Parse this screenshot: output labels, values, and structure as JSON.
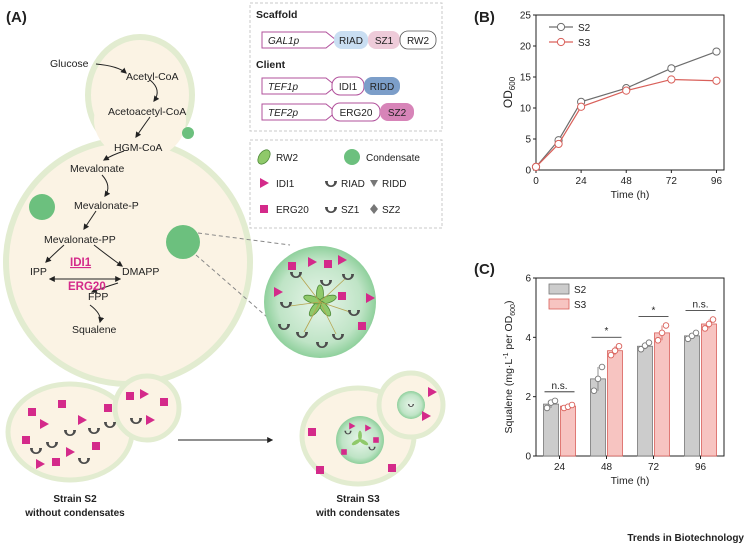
{
  "panel_labels": {
    "a": "(A)",
    "b": "(B)",
    "c": "(C)"
  },
  "pathway": {
    "steps": [
      "Glucose",
      "Acetyl-CoA",
      "Acetoacetyl-CoA",
      "HGM-CoA",
      "Mevalonate",
      "Mevalonate-P",
      "Mevalonate-PP",
      "IPP",
      "DMAPP",
      "FPP",
      "Squalene"
    ],
    "enzymes": {
      "idi1": "IDI1",
      "erg20": "ERG20"
    }
  },
  "strains": {
    "s2_name": "Strain S2",
    "s2_desc": "without condensates",
    "s3_name": "Strain S3",
    "s3_desc": "with condensates"
  },
  "constructs": {
    "scaffold_title": "Scaffold",
    "client_title": "Client",
    "scaffold": {
      "promoter": "GAL1p",
      "domains": [
        "RIAD",
        "SZ1",
        "RW2"
      ]
    },
    "client1": {
      "promoter": "TEF1p",
      "domains": [
        "IDI1",
        "RIDD"
      ]
    },
    "client2": {
      "promoter": "TEF2p",
      "domains": [
        "ERG20",
        "SZ2"
      ]
    }
  },
  "legend": {
    "rw2": "RW2",
    "condensate": "Condensate",
    "idi1": "IDI1",
    "riad": "RIAD",
    "ridd": "RIDD",
    "erg20": "ERG20",
    "sz1": "SZ1",
    "sz2": "SZ2"
  },
  "colors": {
    "magenta": "#d42a8a",
    "cell_fill": "#fbf3e4",
    "cell_edge": "#e2ecd0",
    "condensate": "#6cc07e",
    "s2_line": "#6d6d6d",
    "s3_line": "#d9605a",
    "s2_bar": "#cccccc",
    "s3_bar": "#f7c4c1"
  },
  "chart_data": [
    {
      "type": "line",
      "panel": "B",
      "xlabel": "Time (h)",
      "ylabel_main": "OD",
      "ylabel_sub": "600",
      "x": [
        0,
        12,
        24,
        48,
        72,
        96
      ],
      "xticks": [
        0,
        24,
        48,
        72,
        96
      ],
      "xlim": [
        0,
        100
      ],
      "yticks": [
        0,
        5,
        10,
        15,
        20,
        25
      ],
      "ylim": [
        0,
        25
      ],
      "series": [
        {
          "name": "S2",
          "values": [
            0.5,
            4.8,
            11.0,
            13.2,
            16.4,
            19.1
          ]
        },
        {
          "name": "S3",
          "values": [
            0.5,
            4.2,
            10.2,
            12.8,
            14.6,
            14.4
          ]
        }
      ]
    },
    {
      "type": "bar",
      "panel": "C",
      "xlabel": "Time (h)",
      "ylabel_pre": "Squalene (mg·L",
      "ylabel_exp": "-1",
      "ylabel_post": " per OD",
      "ylabel_sub": "600",
      "ylabel_end": ")",
      "categories": [
        "24",
        "48",
        "72",
        "96"
      ],
      "yticks": [
        0,
        2,
        4,
        6
      ],
      "ylim": [
        0,
        6
      ],
      "series": [
        {
          "name": "S2",
          "values": [
            1.75,
            2.6,
            3.7,
            4.05
          ],
          "points": [
            [
              1.62,
              1.8,
              1.86
            ],
            [
              2.2,
              2.6,
              3.0
            ],
            [
              3.6,
              3.72,
              3.82
            ],
            [
              3.95,
              4.05,
              4.15
            ]
          ]
        },
        {
          "name": "S3",
          "values": [
            1.68,
            3.55,
            4.15,
            4.45
          ],
          "points": [
            [
              1.62,
              1.66,
              1.72
            ],
            [
              3.4,
              3.55,
              3.7
            ],
            [
              3.9,
              4.15,
              4.4
            ],
            [
              4.3,
              4.45,
              4.6
            ]
          ]
        }
      ],
      "significance": [
        "n.s.",
        "*",
        "*",
        "n.s."
      ]
    }
  ],
  "footer": "Trends in Biotechnology"
}
